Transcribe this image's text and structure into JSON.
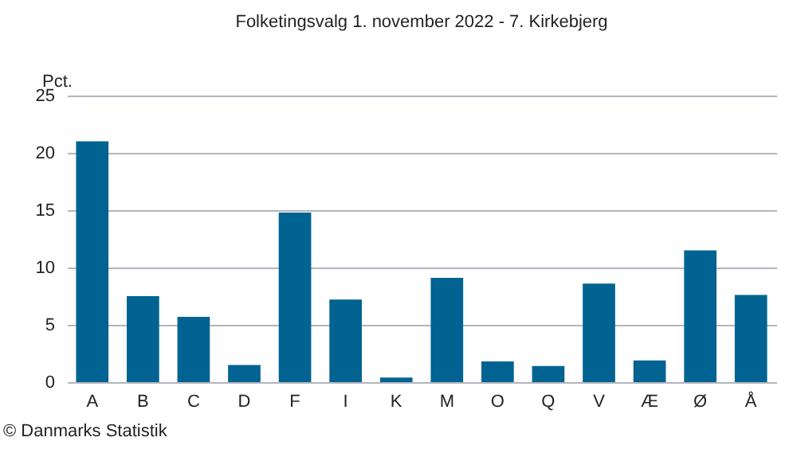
{
  "chart_data": {
    "type": "bar",
    "title": "Folketingsvalg 1. november 2022 - 7. Kirkebjerg",
    "ylabel": "Pct.",
    "categories": [
      "A",
      "B",
      "C",
      "D",
      "F",
      "I",
      "K",
      "M",
      "O",
      "Q",
      "V",
      "Æ",
      "Ø",
      "Å"
    ],
    "values": [
      21.0,
      7.5,
      5.7,
      1.5,
      14.8,
      7.2,
      0.4,
      9.1,
      1.8,
      1.4,
      8.6,
      1.9,
      11.5,
      7.6
    ],
    "color": "#006391",
    "ylim": [
      0,
      25
    ],
    "yticks": [
      0,
      5,
      10,
      15,
      20,
      25
    ],
    "grid": "y",
    "annotations": [
      "© Danmarks Statistik"
    ]
  }
}
